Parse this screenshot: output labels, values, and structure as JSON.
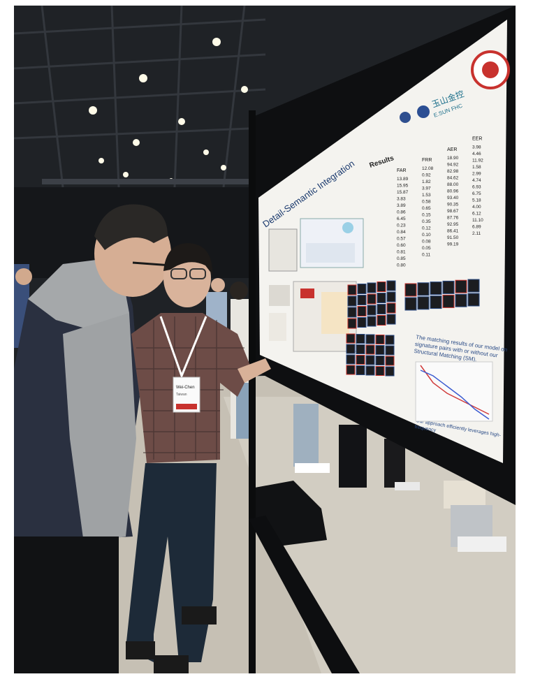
{
  "scene": {
    "poster": {
      "title": "Detail-Semantic Integration",
      "results_heading": "Results",
      "logo_text": "玉山金控",
      "logo_subtext": "E.SUN FHC",
      "caption_matching": "The matching results of our model on signature pairs with or without our Structural Matching (SM).",
      "caption_efficiency": "Our approach efficiently leverages high-frequency",
      "table_headers": [
        "FAR",
        "FRR",
        "AER",
        "EER"
      ],
      "table_rows": [
        [
          "13.89",
          "12.08",
          "18.90",
          "3.98"
        ],
        [
          "15.95",
          "0.92",
          "94.92",
          "4.46"
        ],
        [
          "15.87",
          "1.82",
          "82.98",
          "11.92"
        ],
        [
          "3.83",
          "3.97",
          "84.62",
          "1.58"
        ],
        [
          "3.89",
          "1.53",
          "88.00",
          "2.99"
        ],
        [
          "0.86",
          "0.58",
          "80.96",
          "4.74"
        ],
        [
          "6.45",
          "0.65",
          "93.40",
          "6.93"
        ],
        [
          "0.23",
          "0.15",
          "90.35",
          "6.75"
        ],
        [
          "0.84",
          "0.35",
          "98.67",
          "5.18"
        ],
        [
          "0.57",
          "0.12",
          "87.76",
          "4.00"
        ],
        [
          "0.60",
          "0.10",
          "92.95",
          "6.12"
        ],
        [
          "0.81",
          "0.08",
          "86.41",
          "11.10"
        ],
        [
          "0.85",
          "0.05",
          "91.50",
          "6.89"
        ],
        [
          "0.80",
          "0.11",
          "99.19",
          "2.11"
        ]
      ]
    },
    "badge": {
      "name": "Wei-Chen",
      "affiliation": "Taiwan"
    }
  },
  "colors": {
    "ceiling": "#23262b",
    "floor": "#c8c2b6",
    "poster_bg": "#f4f3ef",
    "accent_red": "#c8322e",
    "hoodie": "#a9acae",
    "vest": "#262c3c",
    "shirt_plaid": "#6b4a45"
  }
}
